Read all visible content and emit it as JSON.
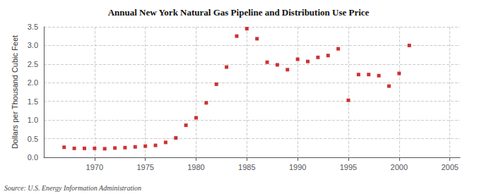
{
  "chart_data": {
    "type": "scatter",
    "title": "Annual New York Natural Gas Pipeline and Distribution Use Price",
    "ylabel": "Dollars per Thousand Cubic Feet",
    "source": "Source: U.S. Energy Information Administration",
    "x": [
      1967,
      1968,
      1969,
      1970,
      1971,
      1972,
      1973,
      1974,
      1975,
      1976,
      1977,
      1978,
      1979,
      1980,
      1981,
      1982,
      1983,
      1984,
      1985,
      1986,
      1987,
      1988,
      1989,
      1990,
      1991,
      1992,
      1993,
      1994,
      1995,
      1996,
      1997,
      1998,
      1999,
      2000,
      2001
    ],
    "values": [
      0.27,
      0.24,
      0.24,
      0.24,
      0.23,
      0.25,
      0.26,
      0.28,
      0.3,
      0.32,
      0.4,
      0.52,
      0.86,
      1.06,
      1.46,
      1.96,
      2.42,
      3.25,
      3.45,
      3.18,
      2.55,
      2.48,
      2.35,
      2.63,
      2.57,
      2.68,
      2.73,
      2.91,
      1.53,
      2.22,
      2.22,
      2.19,
      1.91,
      2.25,
      3.0
    ],
    "color": "#c00000",
    "marker": "square",
    "xlim": [
      1965,
      2006
    ],
    "xticks": [
      1970,
      1975,
      1980,
      1985,
      1990,
      1995,
      2000,
      2005
    ],
    "ylim": [
      0.0,
      3.5
    ],
    "yticks": [
      {
        "value": 0.0,
        "label": "0.0"
      },
      0.5,
      {
        "value": 1.0,
        "label": "1.0"
      },
      1.5,
      {
        "value": 2.0,
        "label": "2.0"
      },
      2.5,
      {
        "value": 3.0,
        "label": "3.0"
      },
      3.5
    ],
    "grid": true
  }
}
